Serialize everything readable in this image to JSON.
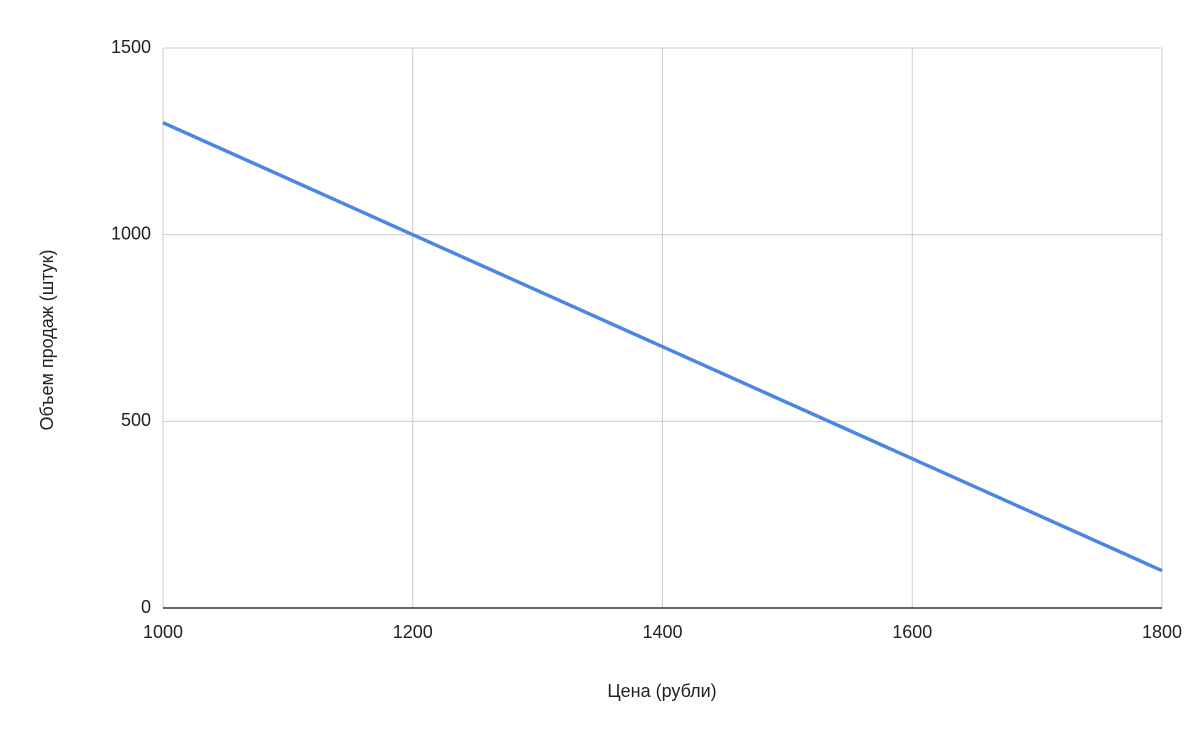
{
  "chart_data": {
    "type": "line",
    "x_label": "Цена (рубли)",
    "y_label": "Объем продаж (штук)",
    "x": [
      1000,
      1200,
      1400,
      1600,
      1800
    ],
    "values": [
      1300,
      1000,
      700,
      400,
      100
    ],
    "color": "#4a86e8",
    "xlim": [
      1000,
      1800
    ],
    "xticks": [
      1000,
      1200,
      1400,
      1600,
      1800
    ],
    "ylim": [
      0,
      1500
    ],
    "yticks": [
      0,
      500,
      1000,
      1500
    ],
    "grid": true
  }
}
